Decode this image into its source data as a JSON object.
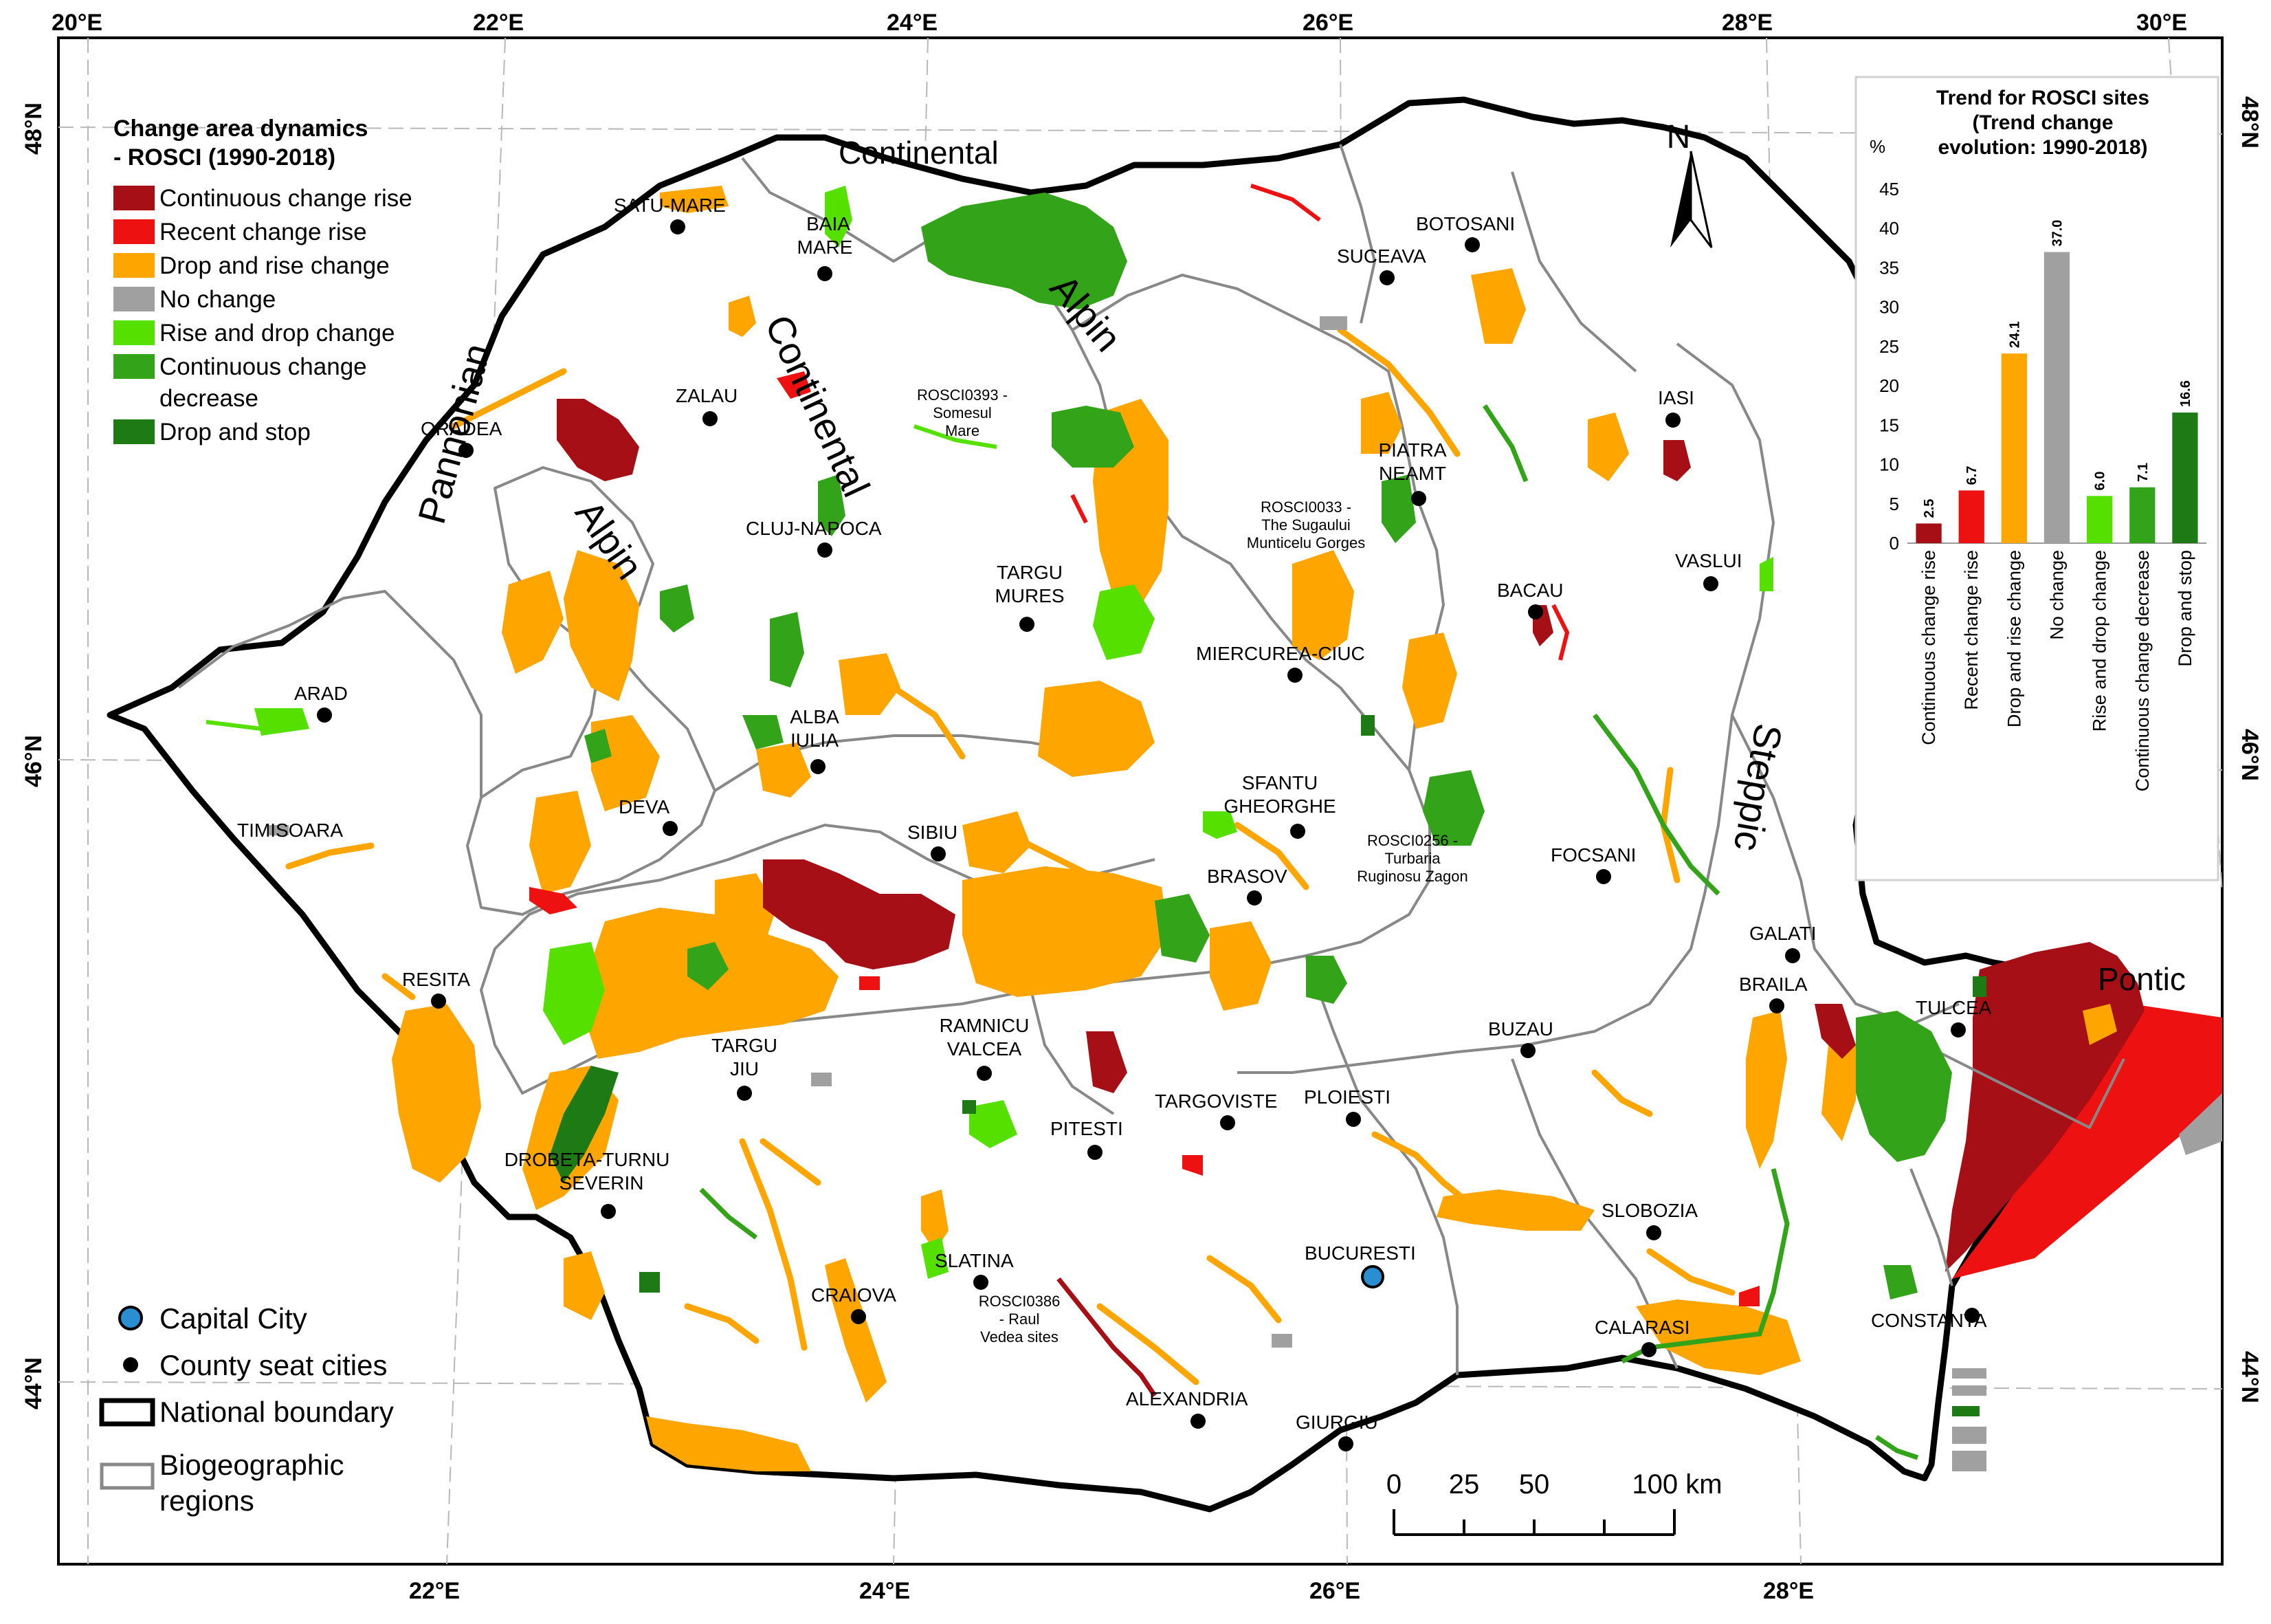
{
  "map": {
    "top_lon_labels": [
      "20°E",
      "22°E",
      "24°E",
      "26°E",
      "28°E",
      "30°E"
    ],
    "bottom_lon_labels": [
      "22°E",
      "24°E",
      "26°E",
      "28°E"
    ],
    "left_lat_labels": [
      "48°N",
      "46°N",
      "44°N"
    ],
    "right_lat_labels": [
      "48°N",
      "46°N",
      "44°N"
    ],
    "colors": {
      "continuous_change_rise": "#a50f15",
      "recent_change_rise": "#ee1111",
      "drop_and_rise_change": "#ffa500",
      "no_change": "#a0a0a0",
      "rise_and_drop_change": "#55e000",
      "continuous_change_decrease": "#33a31a",
      "drop_and_stop": "#1e7a14",
      "capital": "#2a8fd0",
      "boundary": "#000000",
      "region_line": "#888888"
    },
    "regions": {
      "continental_top": "Continental",
      "continental_vertical": "Continental",
      "alpin_upper": "Alpin",
      "alpin_left": "Alpin",
      "pannonian": "Pannonian",
      "steppic": "Steppic",
      "pontic": "Pontic"
    },
    "cities": {
      "satu_mare": "SATU-MARE",
      "baia_mare": "BAIA\nMARE",
      "botosani": "BOTOSANI",
      "suceava": "SUCEAVA",
      "zalau": "ZALAU",
      "oradea": "ORADEA",
      "iasi": "IASI",
      "piatra_neamt": "PIATRA\nNEAMT",
      "cluj": "CLUJ-NAPOCA",
      "targu_mures": "TARGU\nMURES",
      "bacau": "BACAU",
      "vaslui": "VASLUI",
      "miercurea": "MIERCUREA-CIUC",
      "arad": "ARAD",
      "alba_iulia": "ALBA\nIULIA",
      "sfantu": "SFANTU\nGHEORGHE",
      "deva": "DEVA",
      "timisoara": "TIMISOARA",
      "sibiu": "SIBIU",
      "focsani": "FOCSANI",
      "brasov": "BRASOV",
      "galati": "GALATI",
      "resita": "RESITA",
      "braila": "BRAILA",
      "tulcea": "TULCEA",
      "buzau": "BUZAU",
      "ramnicu": "RAMNICU\nVALCEA",
      "targu_jiu": "TARGU\nJIU",
      "targoviste": "TARGOVISTE",
      "ploiesti": "PLOIESTI",
      "pitesti": "PITESTI",
      "drobeta": "DROBETA-TURNU\nSEVERIN",
      "slobozia": "SLOBOZIA",
      "bucuresti": "BUCURESTI",
      "slatina": "SLATINA",
      "craiova": "CRAIOVA",
      "constanta": "CONSTANTA",
      "calarasi": "CALARASI",
      "alexandria": "ALEXANDRIA",
      "giurgiu": "GIURGIU"
    },
    "sites": {
      "rosci0393": "ROSCI0393 -\nSomesul\nMare",
      "rosci0033": "ROSCI0033 -\nThe Sugaului\nMunticelu Gorges",
      "rosci0256": "ROSCI0256 -\nTurbaria\nRuginosu Zagon",
      "rosci0386": "ROSCI0386\n- Raul\nVedea sites"
    },
    "north_label": "N",
    "scale": {
      "ticks": [
        "0",
        "25",
        "50",
        "100 km"
      ]
    }
  },
  "legend": {
    "title_line1": "Change area dynamics",
    "title_line2": "- ROSCI (1990-2018)",
    "items": [
      {
        "label": "Continuous change rise",
        "color": "#a50f15"
      },
      {
        "label": "Recent change rise",
        "color": "#ee1111"
      },
      {
        "label": "Drop and rise change",
        "color": "#ffa500"
      },
      {
        "label": "No change",
        "color": "#a0a0a0"
      },
      {
        "label": "Rise and drop change",
        "color": "#55e000"
      },
      {
        "label": "Continuous change\ndecrease",
        "color": "#33a31a"
      },
      {
        "label": "Drop and stop",
        "color": "#1e7a14"
      }
    ],
    "bottom": {
      "capital": "Capital City",
      "county": "County seat cities",
      "boundary": "National boundary",
      "regions": "Biogeographic\nregions"
    }
  },
  "chart_data": {
    "type": "bar",
    "title": "Trend for ROSCI sites\n(Trend change\nevolution: 1990-2018)",
    "ylabel": "%",
    "ylim": [
      0,
      45
    ],
    "yticks": [
      0,
      5,
      10,
      15,
      20,
      25,
      30,
      35,
      40,
      45
    ],
    "categories": [
      "Continuous change rise",
      "Recent change rise",
      "Drop and rise change",
      "No change",
      "Rise and drop change",
      "Continuous change decrease",
      "Drop and stop"
    ],
    "values": [
      2.5,
      6.7,
      24.1,
      37.0,
      6.0,
      7.1,
      16.6
    ],
    "value_labels": [
      "2.5",
      "6.7",
      "24.1",
      "37.0",
      "6.0",
      "7.1",
      "16.6"
    ],
    "colors": [
      "#a50f15",
      "#ee1111",
      "#ffa500",
      "#a0a0a0",
      "#55e000",
      "#33a31a",
      "#1e7a14"
    ]
  }
}
